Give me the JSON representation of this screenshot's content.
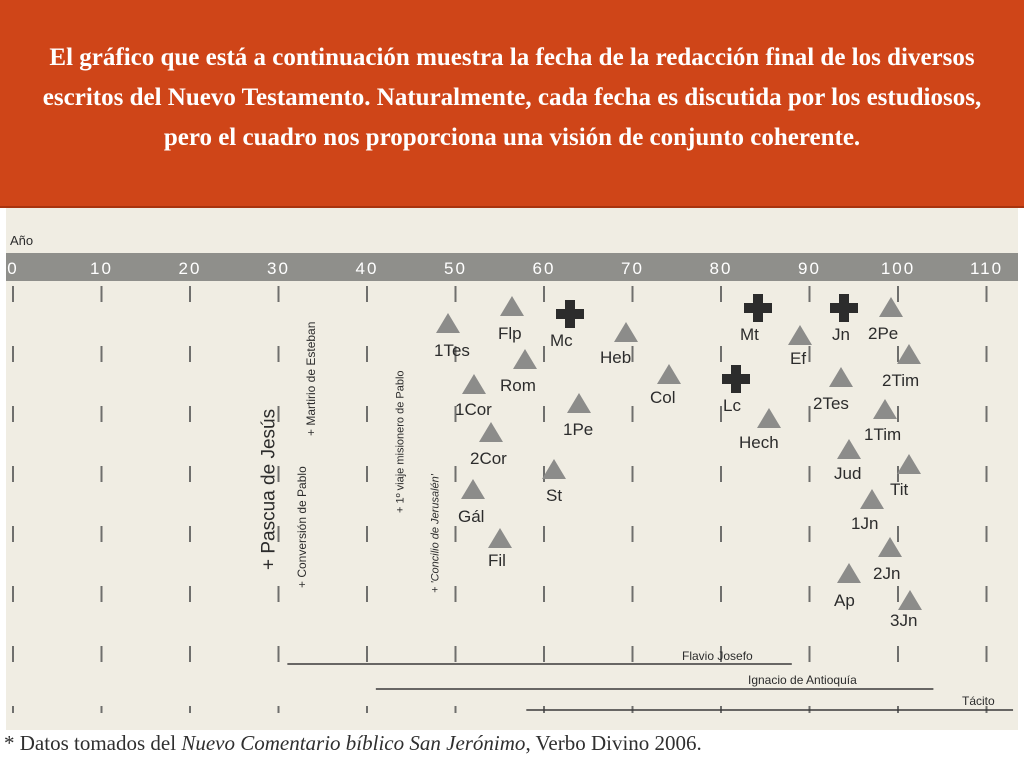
{
  "banner": {
    "text": "El gráfico que está a continuación muestra la fecha de la redacción final de los diversos escritos del Nuevo Testamento. Naturalmente, cada fecha es discutida por los estudiosos, pero el cuadro nos proporciona una visión de conjunto coherente."
  },
  "chart_data": {
    "type": "timeline",
    "axis_label": "Año",
    "ticks": [
      0,
      10,
      20,
      30,
      40,
      50,
      60,
      70,
      80,
      90,
      100,
      110
    ],
    "xlim": [
      0,
      113
    ],
    "grid": true,
    "colors": {
      "axis_band": "#8f8f8b",
      "marker": "#8c8c8a",
      "text": "#2c2c2c",
      "paper": "#f0ede3"
    },
    "vertical_events": [
      {
        "label": "+ Pascua de Jesús",
        "year": 30
      },
      {
        "label": "+ Conversión de Pablo",
        "year": 34
      },
      {
        "label": "+ Martirio de Esteban",
        "year": 35
      },
      {
        "label": "+ 1º viaje misionero de Pablo",
        "year": 45
      },
      {
        "label": "+ 'Concilio de Jerusalén'",
        "year": 49
      }
    ],
    "writings": [
      {
        "label": "1Tes",
        "year": 51,
        "marker": "triangle"
      },
      {
        "label": "1Cor",
        "year": 54,
        "marker": "triangle"
      },
      {
        "label": "2Cor",
        "year": 56,
        "marker": "triangle"
      },
      {
        "label": "Gál",
        "year": 54,
        "marker": "triangle"
      },
      {
        "label": "Flp",
        "year": 57,
        "marker": "triangle"
      },
      {
        "label": "Rom",
        "year": 58,
        "marker": "triangle"
      },
      {
        "label": "Fil",
        "year": 56,
        "marker": "triangle"
      },
      {
        "label": "St",
        "year": 62,
        "marker": "triangle"
      },
      {
        "label": "1Pe",
        "year": 64,
        "marker": "triangle"
      },
      {
        "label": "Mc",
        "year": 64,
        "marker": "cross"
      },
      {
        "label": "Heb",
        "year": 70,
        "marker": "triangle"
      },
      {
        "label": "Col",
        "year": 75,
        "marker": "triangle"
      },
      {
        "label": "Mt",
        "year": 84,
        "marker": "cross"
      },
      {
        "label": "Lc",
        "year": 82,
        "marker": "cross"
      },
      {
        "label": "Hech",
        "year": 86,
        "marker": "triangle"
      },
      {
        "label": "Ef",
        "year": 90,
        "marker": "triangle"
      },
      {
        "label": "Jn",
        "year": 94,
        "marker": "cross"
      },
      {
        "label": "2Tes",
        "year": 94,
        "marker": "triangle"
      },
      {
        "label": "Jud",
        "year": 95,
        "marker": "triangle"
      },
      {
        "label": "Ap",
        "year": 95,
        "marker": "triangle"
      },
      {
        "label": "2Pe",
        "year": 100,
        "marker": "triangle"
      },
      {
        "label": "2Tim",
        "year": 102,
        "marker": "triangle"
      },
      {
        "label": "1Tim",
        "year": 99,
        "marker": "triangle"
      },
      {
        "label": "Tit",
        "year": 102,
        "marker": "triangle"
      },
      {
        "label": "1Jn",
        "year": 97,
        "marker": "triangle"
      },
      {
        "label": "2Jn",
        "year": 99,
        "marker": "triangle"
      },
      {
        "label": "3Jn",
        "year": 100,
        "marker": "triangle"
      }
    ],
    "horizontal_lines": [
      {
        "label": "Flavio Josefo",
        "start": 31,
        "end": 88
      },
      {
        "label": "Ignacio de Antioquía",
        "start": 41,
        "end": 104
      },
      {
        "label": "Tácito",
        "start": 58,
        "end": 113
      }
    ]
  },
  "caption": {
    "prefix": "* Datos tomados del ",
    "title": "Nuevo Comentario bíblico San Jerónimo",
    "suffix": ", Verbo Divino 2006."
  }
}
